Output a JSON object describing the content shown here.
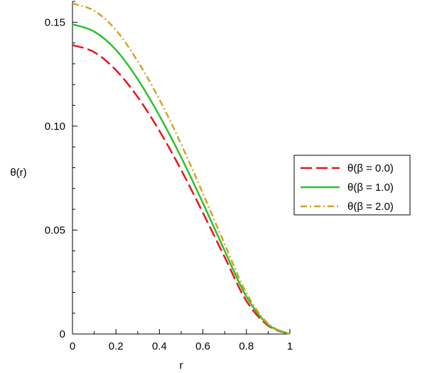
{
  "chart_data": {
    "type": "line",
    "xlabel": "r",
    "ylabel": "θ(r)",
    "xlim": [
      0,
      1
    ],
    "ylim": [
      0,
      0.16
    ],
    "x_ticks": [
      0,
      0.2,
      0.4,
      0.6,
      0.8,
      1
    ],
    "x_tick_labels": [
      "0",
      "0.2",
      "0.4",
      "0.6",
      "0.8",
      "1"
    ],
    "y_ticks": [
      0,
      0.05,
      0.1,
      0.15
    ],
    "y_tick_labels": [
      "0",
      "0.05",
      "0.10",
      "0.15"
    ],
    "grid": false,
    "legend_position": "right",
    "x": [
      0,
      0.1,
      0.2,
      0.3,
      0.4,
      0.5,
      0.6,
      0.7,
      0.8,
      0.9,
      1.0
    ],
    "series": [
      {
        "name": "θ(β = 0.0)",
        "color": "#e8141e",
        "style": "dashed",
        "values": [
          0.139,
          0.1356,
          0.1269,
          0.114,
          0.0977,
          0.0789,
          0.0583,
          0.037,
          0.0159,
          0.004,
          0
        ]
      },
      {
        "name": "θ(β = 1.0)",
        "color": "#2ec02e",
        "style": "solid",
        "values": [
          0.149,
          0.1455,
          0.1367,
          0.1226,
          0.105,
          0.085,
          0.063,
          0.04,
          0.018,
          0.0045,
          0
        ]
      },
      {
        "name": "θ(β = 2.0)",
        "color": "#d9a020",
        "style": "dashdot",
        "values": [
          0.159,
          0.1555,
          0.1462,
          0.1312,
          0.1128,
          0.0913,
          0.0676,
          0.0432,
          0.0197,
          0.005,
          0
        ]
      }
    ]
  }
}
